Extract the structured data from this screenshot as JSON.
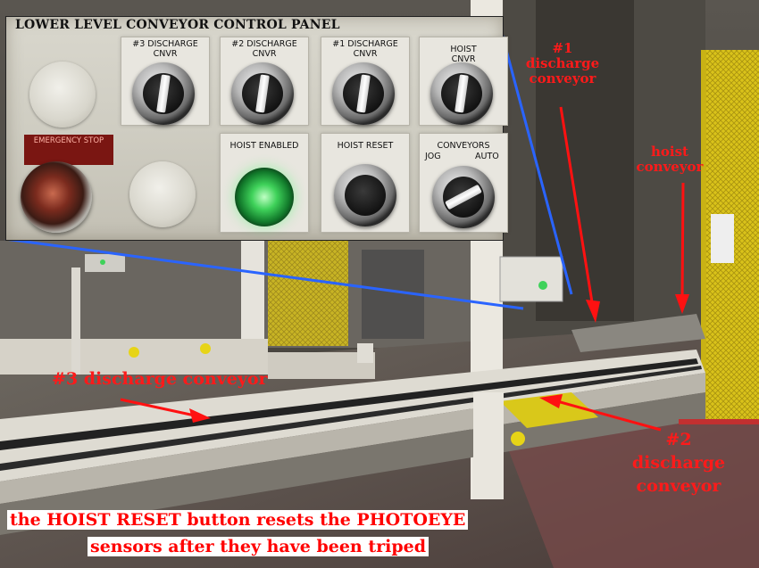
{
  "panel": {
    "title": "LOWER LEVEL CONVEYOR CONTROL PANEL",
    "emergency_stop": "EMERGENCY STOP",
    "switches": [
      {
        "label": "#3 DISCHARGE\nCNVR"
      },
      {
        "label": "#2 DISCHARGE\nCNVR"
      },
      {
        "label": "#1 DISCHARGE\nCNVR"
      },
      {
        "label": "HOIST\nCNVR"
      }
    ],
    "hoist_enabled": "HOIST ENABLED",
    "hoist_reset": "HOIST RESET",
    "conveyors": "CONVEYORS",
    "jog": "JOG",
    "auto": "AUTO"
  },
  "annotations": {
    "discharge_1": "#1\ndischarge\nconveyor",
    "hoist": "hoist\nconveyor",
    "discharge_3": "#3 discharge conveyor",
    "discharge_2": "#2\ndischarge\nconveyor"
  },
  "caption": {
    "line1": "the HOIST RESET button resets the PHOTOEYE",
    "line2": "sensors after they have been triped"
  },
  "colors": {
    "annotation_text": "#ff1a1a",
    "arrow": "#ff1111",
    "callout_line": "#2a64ff",
    "pilot_light": "#3fd25a",
    "guard_fence": "#e8d21a"
  }
}
